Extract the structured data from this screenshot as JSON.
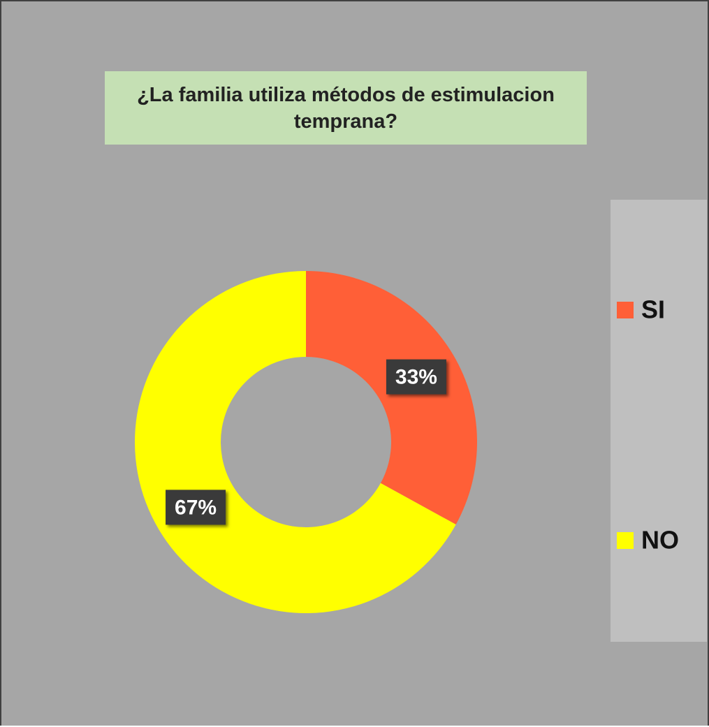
{
  "chart_data": {
    "type": "donut",
    "title": "¿La familia utiliza métodos de estimulacion temprana?",
    "categories": [
      "SI",
      "NO"
    ],
    "values": [
      33,
      67
    ],
    "value_labels": [
      "33%",
      "67%"
    ],
    "colors": [
      "#ff5f37",
      "#ffff00"
    ],
    "legend": "right"
  }
}
